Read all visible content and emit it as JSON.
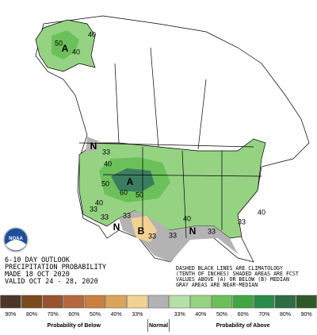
{
  "map": {
    "labels": [
      "A",
      "50",
      "40",
      "40",
      "N",
      "33",
      "40",
      "A",
      "60",
      "50",
      "50",
      "40",
      "33",
      "33",
      "N",
      "B",
      "33",
      "33",
      "33",
      "40",
      "N",
      "33",
      "40",
      "33"
    ]
  },
  "outlook": [
    "6-10 DAY OUTLOOK",
    "PRECIPITATION PROBABILITY",
    "MADE  18 OCT 2020",
    "VALID  OCT 24 - 28, 2020"
  ],
  "notes": [
    "DASHED BLACK LINES ARE CLIMATOLOGY",
    "(TENTH OF INCHES) SHADED AREAS ARE FCST",
    "VALUES ABOVE (A) OR BELOW (B) MEDIAN",
    "GRAY AREAS ARE NEAR-MEDIAN"
  ],
  "logo": "NOAA",
  "legend": {
    "below": {
      "title": "Probability of Below",
      "items": [
        {
          "label": "90%",
          "color": "#4d3527"
        },
        {
          "label": "80%",
          "color": "#7b4a1c"
        },
        {
          "label": "70%",
          "color": "#995331"
        },
        {
          "label": "60%",
          "color": "#b4683c"
        },
        {
          "label": "50%",
          "color": "#c97f3e"
        },
        {
          "label": "40%",
          "color": "#dba45c"
        },
        {
          "label": "33%",
          "color": "#f1d292"
        }
      ]
    },
    "normal": {
      "title": "Normal",
      "color": "#b3b3b3"
    },
    "above": {
      "title": "Probability of Above",
      "items": [
        {
          "label": "33%",
          "color": "#b5e0a6"
        },
        {
          "label": "40%",
          "color": "#95d383"
        },
        {
          "label": "50%",
          "color": "#6cc05a"
        },
        {
          "label": "60%",
          "color": "#3fa642"
        },
        {
          "label": "70%",
          "color": "#2a8c4a"
        },
        {
          "label": "80%",
          "color": "#2e6c43"
        },
        {
          "label": "90%",
          "color": "#2d5a28"
        }
      ]
    }
  }
}
